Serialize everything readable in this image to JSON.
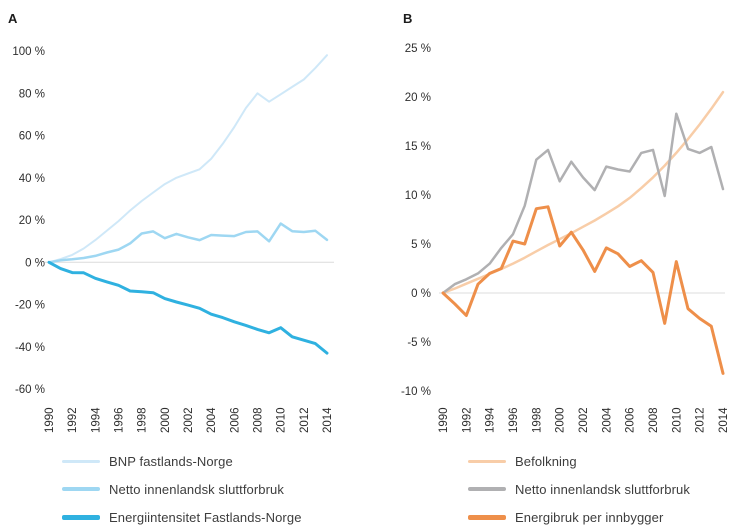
{
  "chart_data": [
    {
      "type": "line",
      "title": "A",
      "x": [
        1990,
        1991,
        1992,
        1993,
        1994,
        1995,
        1996,
        1997,
        1998,
        1999,
        2000,
        2001,
        2002,
        2003,
        2004,
        2005,
        2006,
        2007,
        2008,
        2009,
        2010,
        2011,
        2012,
        2013,
        2014
      ],
      "x_tick_labels": [
        "1990",
        "1992",
        "1994",
        "1996",
        "1998",
        "2000",
        "2002",
        "2004",
        "2006",
        "2008",
        "2010",
        "2012",
        "2014"
      ],
      "y_ticks": [
        {
          "value": 100,
          "label": "100 %"
        },
        {
          "value": 80,
          "label": "80 %"
        },
        {
          "value": 60,
          "label": "60 %"
        },
        {
          "value": 40,
          "label": "40 %"
        },
        {
          "value": 20,
          "label": "20 %"
        },
        {
          "value": 0,
          "label": "0 %"
        },
        {
          "value": -20,
          "label": "-20 %"
        },
        {
          "value": -40,
          "label": "-40 %"
        },
        {
          "value": -60,
          "label": "-60 %"
        }
      ],
      "ylim": [
        -60,
        100
      ],
      "grid": "zero-line-only",
      "legend_position": "below",
      "zero_line_color": "#dcdcdc",
      "series": [
        {
          "name": "BNP fastlands-Norge",
          "color": "#cfe8f8",
          "width": 2,
          "values": [
            0,
            1.5,
            3.5,
            6.5,
            10.5,
            15,
            19.5,
            24.5,
            29,
            33,
            37,
            40,
            42,
            44,
            49,
            56,
            64,
            73,
            80,
            76,
            79.5,
            83,
            86.5,
            92,
            98
          ]
        },
        {
          "name": "Netto innenlandsk sluttforbruk",
          "color": "#9ed7f2",
          "width": 2.5,
          "values": [
            0,
            0.9,
            1.4,
            2,
            3,
            4.6,
            6,
            8.9,
            13.6,
            14.6,
            11.4,
            13.4,
            11.8,
            10.5,
            12.9,
            12.6,
            12.4,
            14.3,
            14.6,
            9.9,
            18.3,
            14.7,
            14.3,
            14.9,
            10.6
          ]
        },
        {
          "name": "Energiintensitet Fastlands-Norge",
          "color": "#2fb1e0",
          "width": 3,
          "values": [
            0,
            -3,
            -4.9,
            -5,
            -7.6,
            -9.3,
            -10.9,
            -13.6,
            -14,
            -14.4,
            -17.2,
            -18.8,
            -20.3,
            -21.8,
            -24.6,
            -26.2,
            -28.2,
            -29.9,
            -31.8,
            -33.4,
            -31,
            -35.3,
            -36.9,
            -38.5,
            -43
          ]
        }
      ]
    },
    {
      "type": "line",
      "title": "B",
      "x": [
        1990,
        1991,
        1992,
        1993,
        1994,
        1995,
        1996,
        1997,
        1998,
        1999,
        2000,
        2001,
        2002,
        2003,
        2004,
        2005,
        2006,
        2007,
        2008,
        2009,
        2010,
        2011,
        2012,
        2013,
        2014
      ],
      "x_tick_labels": [
        "1990",
        "1992",
        "1994",
        "1996",
        "1998",
        "2000",
        "2002",
        "2004",
        "2006",
        "2008",
        "2010",
        "2012",
        "2014"
      ],
      "y_ticks": [
        {
          "value": 25,
          "label": "25 %"
        },
        {
          "value": 20,
          "label": "20 %"
        },
        {
          "value": 15,
          "label": "15 %"
        },
        {
          "value": 10,
          "label": "10 %"
        },
        {
          "value": 5,
          "label": "5 %"
        },
        {
          "value": 0,
          "label": "0 %"
        },
        {
          "value": -5,
          "label": "-5 %"
        },
        {
          "value": -10,
          "label": "-10 %"
        }
      ],
      "ylim": [
        -10,
        25
      ],
      "grid": "zero-line-only",
      "legend_position": "below",
      "zero_line_color": "#dcdcdc",
      "series": [
        {
          "name": "Befolkning",
          "color": "#f8cda8",
          "width": 2.5,
          "values": [
            0,
            0.45,
            0.95,
            1.45,
            1.95,
            2.45,
            3,
            3.6,
            4.25,
            4.9,
            5.5,
            6.1,
            6.75,
            7.4,
            8.1,
            8.85,
            9.7,
            10.7,
            11.8,
            13,
            14.3,
            15.7,
            17.2,
            18.8,
            20.5
          ]
        },
        {
          "name": "Netto innenlandsk sluttforbruk",
          "color": "#b0b0b2",
          "width": 2.5,
          "values": [
            0,
            0.9,
            1.4,
            2,
            3,
            4.6,
            6,
            8.9,
            13.6,
            14.6,
            11.4,
            13.4,
            11.8,
            10.5,
            12.9,
            12.6,
            12.4,
            14.3,
            14.6,
            9.9,
            18.3,
            14.7,
            14.3,
            14.9,
            10.6
          ]
        },
        {
          "name": "Energibruk per innbygger",
          "color": "#ee8f4a",
          "width": 3,
          "values": [
            0,
            -1.1,
            -2.3,
            0.9,
            2,
            2.5,
            5.3,
            5,
            8.6,
            8.8,
            4.8,
            6.2,
            4.4,
            2.2,
            4.6,
            4,
            2.7,
            3.3,
            2.1,
            -3.1,
            3.2,
            -1.6,
            -2.6,
            -3.4,
            -8.2
          ]
        }
      ]
    }
  ]
}
